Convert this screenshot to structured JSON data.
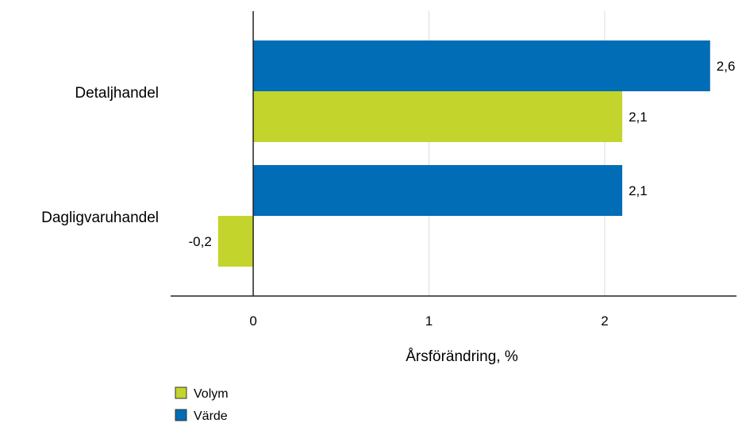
{
  "chart_data": {
    "type": "bar",
    "orientation": "horizontal",
    "categories": [
      "Detaljhandel",
      "Dagligvaruhandel"
    ],
    "series": [
      {
        "name": "Värde",
        "values": [
          2.6,
          2.1
        ],
        "color": "#006db6"
      },
      {
        "name": "Volym",
        "values": [
          2.1,
          -0.2
        ],
        "color": "#c3d52c"
      }
    ],
    "data_labels": {
      "Värde": [
        "2,6",
        "2,1"
      ],
      "Volym": [
        "2,1",
        "-0,2"
      ]
    },
    "xlabel": "Årsförändring, %",
    "xlim": [
      -0.47,
      2.75
    ],
    "xticks": [
      0,
      1,
      2
    ],
    "xtick_labels": [
      "0",
      "1",
      "2"
    ],
    "grid": true,
    "legend_placement": "bottom-left",
    "legend": [
      {
        "name": "Volym",
        "color": "#c3d52c"
      },
      {
        "name": "Värde",
        "color": "#006db6"
      }
    ]
  }
}
